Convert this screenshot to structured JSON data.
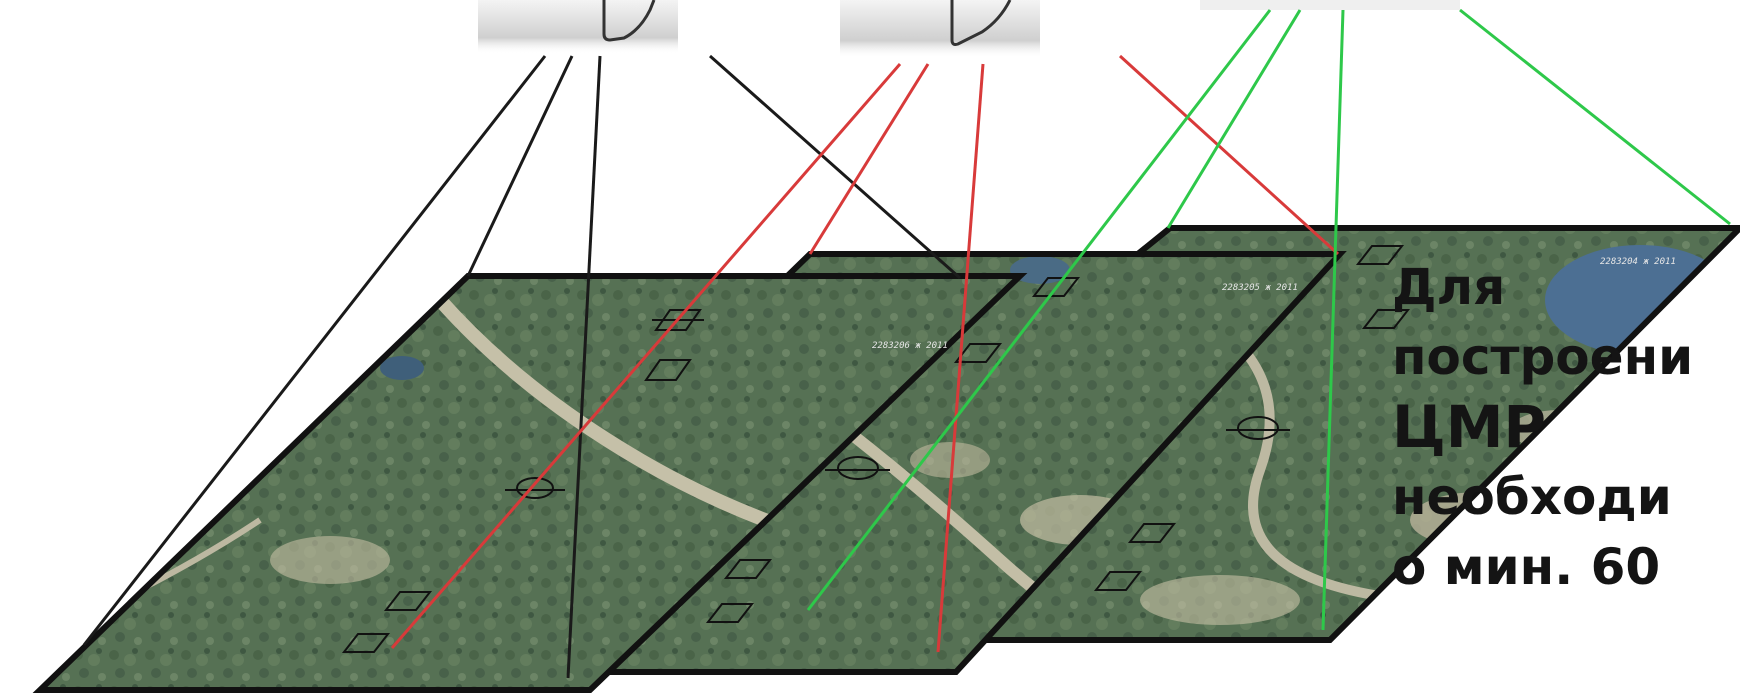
{
  "caption": {
    "lines": [
      "Для",
      "построени",
      "ЦМР",
      "необходи",
      "о мин. 60"
    ]
  },
  "photos": [
    {
      "label": "aerial-photo-1",
      "stamp": "2283206 ж 2011"
    },
    {
      "label": "aerial-photo-2",
      "stamp": "2283205 ж 2011"
    },
    {
      "label": "aerial-photo-3",
      "stamp": "2283204 ж 2011"
    }
  ],
  "colors": {
    "camera_1_rays": "#1a1a1a",
    "camera_2_rays": "#d83a3a",
    "camera_3_rays": "#2ec84a",
    "frame": "#111111",
    "photo_base": "#556f52"
  },
  "icons": [
    "camera-icon",
    "camera-icon",
    "camera-icon"
  ]
}
